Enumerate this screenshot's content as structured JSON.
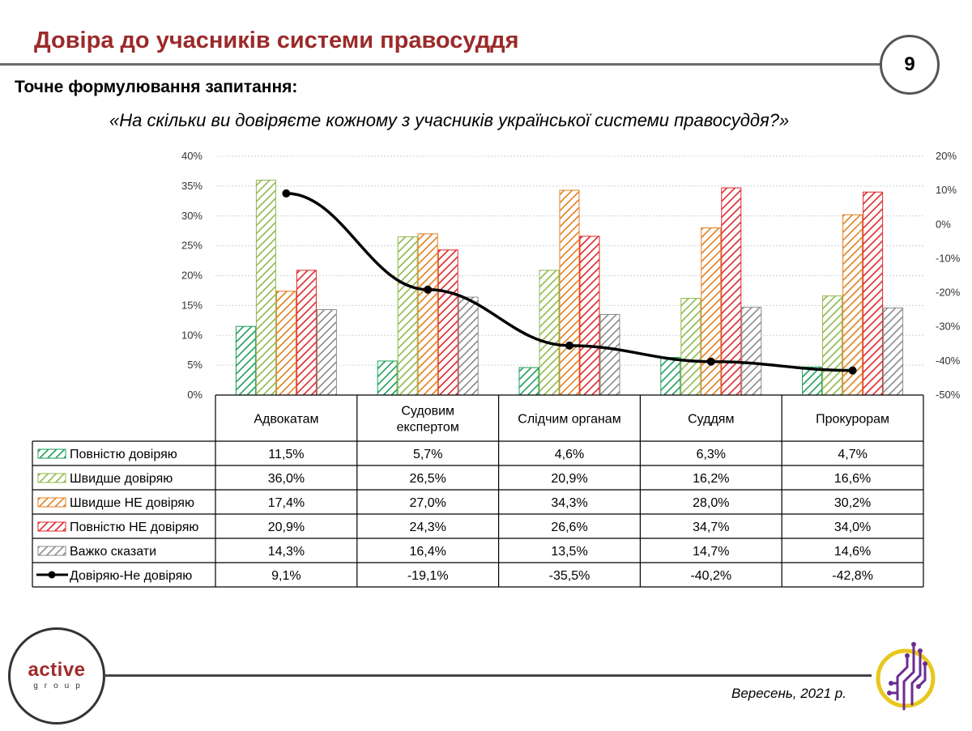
{
  "header": {
    "title": "Довіра до учасників системи правосуддя",
    "page_number": "9",
    "question_label": "Точне формулювання запитання:",
    "question_text": "«На скільки ви довіряєте кожному з учасників української системи правосуддя?»"
  },
  "footer": {
    "logo_word": "active",
    "logo_sub": "group",
    "date": "Вересень, 2021 р."
  },
  "chart_data": {
    "type": "bar",
    "categories": [
      [
        "Адвокатам"
      ],
      [
        "Судовим",
        "експертом"
      ],
      [
        "Слідчим органам"
      ],
      [
        "Суддям"
      ],
      [
        "Прокурорам"
      ]
    ],
    "ylim_left": [
      0,
      40
    ],
    "yticks_left": [
      "0%",
      "5%",
      "10%",
      "15%",
      "20%",
      "25%",
      "30%",
      "35%",
      "40%"
    ],
    "ylim_right": [
      -50,
      20
    ],
    "yticks_right": [
      "-50%",
      "-40%",
      "-30%",
      "-20%",
      "-10%",
      "0%",
      "10%",
      "20%"
    ],
    "grid": true,
    "series": [
      {
        "name": "Повністю довіряю",
        "kind": "bar",
        "color": "#1e9e5a",
        "values": [
          11.5,
          5.7,
          4.6,
          6.3,
          4.7
        ],
        "labels": [
          "11,5%",
          "5,7%",
          "4,6%",
          "6,3%",
          "4,7%"
        ]
      },
      {
        "name": "Швидше довіряю",
        "kind": "bar",
        "color": "#8fb84a",
        "values": [
          36.0,
          26.5,
          20.9,
          16.2,
          16.6
        ],
        "labels": [
          "36,0%",
          "26,5%",
          "20,9%",
          "16,2%",
          "16,6%"
        ]
      },
      {
        "name": "Швидше НЕ довіряю",
        "kind": "bar",
        "color": "#e07f1f",
        "values": [
          17.4,
          27.0,
          34.3,
          28.0,
          30.2
        ],
        "labels": [
          "17,4%",
          "27,0%",
          "34,3%",
          "28,0%",
          "30,2%"
        ]
      },
      {
        "name": "Повністю НЕ довіряю",
        "kind": "bar",
        "color": "#e0262a",
        "values": [
          20.9,
          24.3,
          26.6,
          34.7,
          34.0
        ],
        "labels": [
          "20,9%",
          "24,3%",
          "26,6%",
          "34,7%",
          "34,0%"
        ]
      },
      {
        "name": "Важко сказати",
        "kind": "bar",
        "color": "#8a8a8a",
        "values": [
          14.3,
          16.4,
          13.5,
          14.7,
          14.6
        ],
        "labels": [
          "14,3%",
          "16,4%",
          "13,5%",
          "14,7%",
          "14,6%"
        ]
      },
      {
        "name": "Довіряю-Не довіряю",
        "kind": "line",
        "axis": "right",
        "color": "#000000",
        "values": [
          9.1,
          -19.1,
          -35.5,
          -40.2,
          -42.8
        ],
        "labels": [
          "9,1%",
          "-19,1%",
          "-35,5%",
          "-40,2%",
          "-42,8%"
        ]
      }
    ]
  }
}
